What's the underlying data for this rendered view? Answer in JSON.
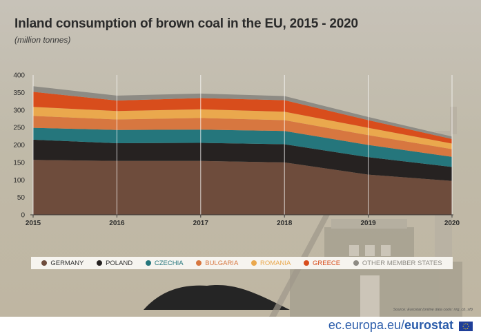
{
  "header": {
    "title": "Inland consumption of brown coal in the EU, 2015 - 2020",
    "subtitle": "(million tonnes)"
  },
  "source": "Source: Eurostat (online data code: nrg_cb_sff)",
  "footer": {
    "domain": "ec.europa.eu/",
    "brand": "eurostat"
  },
  "colors": {
    "germany": "#6e4c3c",
    "poland": "#262221",
    "czechia": "#25767c",
    "bulgaria": "#d77740",
    "romania": "#eaa84d",
    "greece": "#d84d1c",
    "other": "#8d8b84"
  },
  "chart_data": {
    "type": "area",
    "stacked": true,
    "x": [
      "2015",
      "2016",
      "2017",
      "2018",
      "2019",
      "2020"
    ],
    "ylim": [
      0,
      400
    ],
    "yticks": [
      "0",
      "50",
      "100",
      "150",
      "200",
      "250",
      "300",
      "350",
      "400"
    ],
    "grid": "vertical",
    "legend_position": "bottom",
    "series": [
      {
        "name": "GERMANY",
        "color": "#6e4c3c",
        "values": [
          157,
          154,
          154,
          150,
          115,
          97
        ]
      },
      {
        "name": "POLAND",
        "color": "#262221",
        "values": [
          58,
          51,
          52,
          52,
          50,
          40
        ]
      },
      {
        "name": "CZECHIA",
        "color": "#25767c",
        "values": [
          34,
          38,
          38,
          38,
          35,
          29
        ]
      },
      {
        "name": "BULGARIA",
        "color": "#d77740",
        "values": [
          34,
          30,
          33,
          31,
          28,
          22
        ]
      },
      {
        "name": "ROMANIA",
        "color": "#eaa84d",
        "values": [
          26,
          24,
          25,
          24,
          21,
          16
        ]
      },
      {
        "name": "GREECE",
        "color": "#d84d1c",
        "values": [
          43,
          30,
          32,
          33,
          22,
          13
        ]
      },
      {
        "name": "OTHER MEMBER STATES",
        "color": "#8d8b84",
        "values": [
          16,
          14,
          13,
          12,
          9,
          7
        ]
      }
    ]
  }
}
